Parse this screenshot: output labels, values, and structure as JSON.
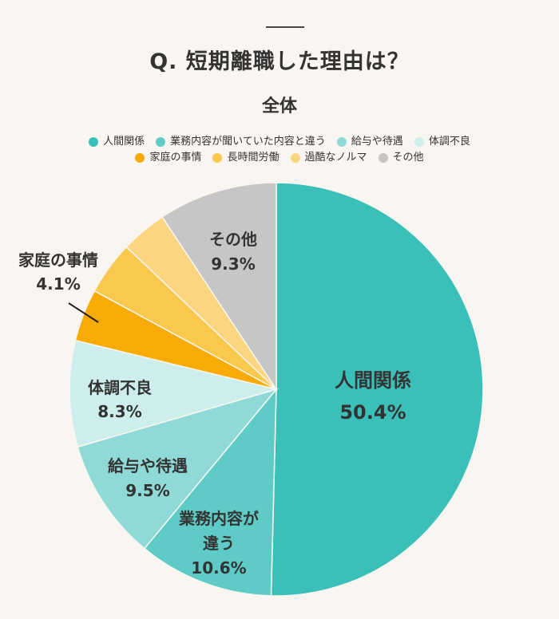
{
  "header": {
    "title": "Q. 短期離職した理由は？",
    "subtitle": "全体"
  },
  "legend": {
    "row1": [
      {
        "label": "人間関係",
        "color": "#3bbfb9"
      },
      {
        "label": "業務内容が聞いていた内容と違う",
        "color": "#5ecbc6"
      },
      {
        "label": "給与や待遇",
        "color": "#8fdad6"
      },
      {
        "label": "体調不良",
        "color": "#cdeeed"
      }
    ],
    "row2": [
      {
        "label": "家庭の事情",
        "color": "#f8ab05"
      },
      {
        "label": "長時間労働",
        "color": "#fbc84e"
      },
      {
        "label": "過酷なノルマ",
        "color": "#fcd580"
      },
      {
        "label": "その他",
        "color": "#c6c6c6"
      }
    ]
  },
  "labels": {
    "s0": {
      "line1": "人間関係",
      "line2": "50.4%"
    },
    "s1": {
      "line1": "業務内容が",
      "line2": "違う",
      "line3": "10.6%"
    },
    "s2": {
      "line1": "給与や待遇",
      "line2": "9.5%"
    },
    "s3": {
      "line1": "体調不良",
      "line2": "8.3%"
    },
    "s4": {
      "line1": "家庭の事情",
      "line2": "4.1%"
    },
    "s7": {
      "line1": "その他",
      "line2": "9.3%"
    }
  },
  "chart_data": {
    "type": "pie",
    "title": "Q. 短期離職した理由は？",
    "subtitle": "全体",
    "categories": [
      "人間関係",
      "業務内容が聞いていた内容と違う",
      "給与や待遇",
      "体調不良",
      "家庭の事情",
      "長時間労働",
      "過酷なノルマ",
      "その他"
    ],
    "values": [
      50.4,
      10.6,
      9.5,
      8.3,
      4.1,
      4.2,
      3.6,
      9.3
    ],
    "colors": [
      "#3bbfb9",
      "#5ecbc6",
      "#8fdad6",
      "#cdeeed",
      "#f8ab05",
      "#fbc84e",
      "#fcd580",
      "#c6c6c6"
    ],
    "unit": "%",
    "start_angle": "12 o'clock",
    "direction": "clockwise",
    "legend_position": "top"
  }
}
